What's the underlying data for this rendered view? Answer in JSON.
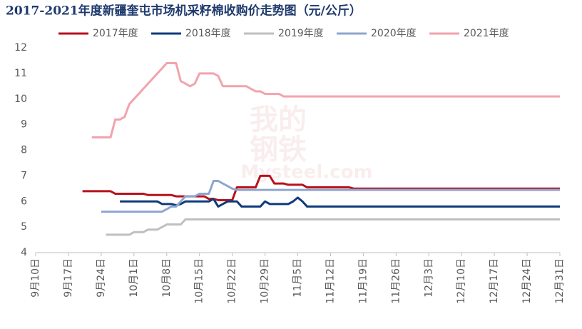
{
  "chart_data": {
    "type": "line",
    "title": "2017-2021年度新疆奎屯市场机采籽棉收购价走势图（元/公斤）",
    "watermark": [
      "我的",
      "钢铁",
      "Mysteel.com"
    ],
    "categories": [
      "9月10日",
      null,
      null,
      null,
      null,
      null,
      null,
      "9月17日",
      null,
      null,
      null,
      null,
      null,
      null,
      "9月24日",
      null,
      null,
      null,
      null,
      null,
      null,
      "10月1日",
      null,
      null,
      null,
      null,
      null,
      null,
      "10月8日",
      null,
      null,
      null,
      null,
      null,
      null,
      "10月15日",
      null,
      null,
      null,
      null,
      null,
      null,
      "10月22日",
      null,
      null,
      null,
      null,
      null,
      null,
      "10月29日",
      null,
      null,
      null,
      null,
      null,
      null,
      "11月5日",
      null,
      null,
      null,
      null,
      null,
      null,
      "11月12日",
      null,
      null,
      null,
      null,
      null,
      null,
      "11月19日",
      null,
      null,
      null,
      null,
      null,
      null,
      "11月26日",
      null,
      null,
      null,
      null,
      null,
      null,
      "12月3日",
      null,
      null,
      null,
      null,
      null,
      null,
      "12月10日",
      null,
      null,
      null,
      null,
      null,
      null,
      "12月17日",
      null,
      null,
      null,
      null,
      null,
      null,
      "12月24日",
      null,
      null,
      null,
      null,
      null,
      null,
      "12月31日"
    ],
    "ylim": [
      4,
      12
    ],
    "yticks": [
      4,
      5,
      6,
      7,
      8,
      9,
      10,
      11,
      12
    ],
    "grid": false,
    "legend": "top",
    "series": [
      {
        "name": "2017年度",
        "color": "#b8121c",
        "values": [
          null,
          null,
          null,
          null,
          null,
          null,
          null,
          null,
          null,
          null,
          6.4,
          6.4,
          6.4,
          6.4,
          6.4,
          6.4,
          6.4,
          6.3,
          6.3,
          6.3,
          6.3,
          6.3,
          6.3,
          6.3,
          6.25,
          6.25,
          6.25,
          6.25,
          6.25,
          6.25,
          6.2,
          6.2,
          6.2,
          6.2,
          6.2,
          6.2,
          6.2,
          6.1,
          6.1,
          6.05,
          6.05,
          6.05,
          6.05,
          6.55,
          6.55,
          6.55,
          6.55,
          6.55,
          7.0,
          7.0,
          7.0,
          6.7,
          6.7,
          6.7,
          6.65,
          6.65,
          6.65,
          6.65,
          6.55,
          6.55,
          6.55,
          6.55,
          6.55,
          6.55,
          6.55,
          6.55,
          6.55,
          6.55,
          6.5,
          6.5,
          6.5,
          6.5,
          6.5,
          6.5,
          6.5,
          6.5,
          6.5,
          6.5,
          6.5,
          6.5,
          6.5,
          6.5,
          6.5,
          6.5,
          6.5,
          6.5,
          6.5,
          6.5,
          6.5,
          6.5,
          6.5,
          6.5,
          6.5,
          6.5,
          6.5,
          6.5,
          6.5,
          6.5,
          6.5,
          6.5,
          6.5,
          6.5,
          6.5,
          6.5,
          6.5,
          6.5,
          6.5,
          6.5,
          6.5,
          6.5,
          6.5,
          6.5,
          6.5
        ]
      },
      {
        "name": "2018年度",
        "color": "#0f3b7d",
        "values": [
          null,
          null,
          null,
          null,
          null,
          null,
          null,
          null,
          null,
          null,
          null,
          null,
          null,
          null,
          null,
          null,
          null,
          null,
          6.0,
          6.0,
          6.0,
          6.0,
          6.0,
          6.0,
          6.0,
          6.0,
          6.0,
          5.9,
          5.9,
          5.9,
          5.85,
          5.9,
          6.0,
          6.0,
          6.0,
          6.0,
          6.0,
          6.0,
          6.1,
          5.8,
          5.9,
          6.0,
          6.0,
          6.0,
          5.8,
          5.8,
          5.8,
          5.8,
          5.8,
          6.0,
          5.9,
          5.9,
          5.9,
          5.9,
          5.9,
          6.0,
          6.15,
          6.0,
          5.8,
          5.8,
          5.8,
          5.8,
          5.8,
          5.8,
          5.8,
          5.8,
          5.8,
          5.8,
          5.8,
          5.8,
          5.8,
          5.8,
          5.8,
          5.8,
          5.8,
          5.8,
          5.8,
          5.8,
          5.8,
          5.8,
          5.8,
          5.8,
          5.8,
          5.8,
          5.8,
          5.8,
          5.8,
          5.8,
          5.8,
          5.8,
          5.8,
          5.8,
          5.8,
          5.8,
          5.8,
          5.8,
          5.8,
          5.8,
          5.8,
          5.8,
          5.8,
          5.8,
          5.8,
          5.8,
          5.8,
          5.8,
          5.8,
          5.8,
          5.8,
          5.8,
          5.8,
          5.8,
          5.8
        ]
      },
      {
        "name": "2019年度",
        "color": "#bfbfbf",
        "values": [
          null,
          null,
          null,
          null,
          null,
          null,
          null,
          null,
          null,
          null,
          null,
          null,
          null,
          null,
          null,
          4.7,
          4.7,
          4.7,
          4.7,
          4.7,
          4.7,
          4.8,
          4.8,
          4.8,
          4.9,
          4.9,
          4.9,
          5.0,
          5.1,
          5.1,
          5.1,
          5.1,
          5.3,
          5.3,
          5.3,
          5.3,
          5.3,
          5.3,
          5.3,
          5.3,
          5.3,
          5.3,
          5.3,
          5.3,
          5.3,
          5.3,
          5.3,
          5.3,
          5.3,
          5.3,
          5.3,
          5.3,
          5.3,
          5.3,
          5.3,
          5.3,
          5.3,
          5.3,
          5.3,
          5.3,
          5.3,
          5.3,
          5.3,
          5.3,
          5.3,
          5.3,
          5.3,
          5.3,
          5.3,
          5.3,
          5.3,
          5.3,
          5.3,
          5.3,
          5.3,
          5.3,
          5.3,
          5.3,
          5.3,
          5.3,
          5.3,
          5.3,
          5.3,
          5.3,
          5.3,
          5.3,
          5.3,
          5.3,
          5.3,
          5.3,
          5.3,
          5.3,
          5.3,
          5.3,
          5.3,
          5.3,
          5.3,
          5.3,
          5.3,
          5.3,
          5.3,
          5.3,
          5.3,
          5.3,
          5.3,
          5.3,
          5.3,
          5.3,
          5.3,
          5.3,
          5.3,
          5.3,
          5.3
        ]
      },
      {
        "name": "2020年度",
        "color": "#8ea6cf",
        "values": [
          null,
          null,
          null,
          null,
          null,
          null,
          null,
          null,
          null,
          null,
          null,
          null,
          null,
          null,
          5.6,
          5.6,
          5.6,
          5.6,
          5.6,
          5.6,
          5.6,
          5.6,
          5.6,
          5.6,
          5.6,
          5.6,
          5.6,
          5.6,
          5.7,
          5.8,
          5.8,
          6.0,
          6.2,
          6.2,
          6.2,
          6.3,
          6.3,
          6.3,
          6.8,
          6.8,
          6.7,
          6.6,
          6.5,
          6.45,
          6.45,
          6.45,
          6.45,
          6.45,
          6.45,
          6.45,
          6.45,
          6.45,
          6.45,
          6.45,
          6.45,
          6.45,
          6.45,
          6.45,
          6.45,
          6.45,
          6.45,
          6.45,
          6.45,
          6.45,
          6.45,
          6.45,
          6.45,
          6.45,
          6.45,
          6.45,
          6.45,
          6.45,
          6.45,
          6.45,
          6.45,
          6.45,
          6.45,
          6.45,
          6.45,
          6.45,
          6.45,
          6.45,
          6.45,
          6.45,
          6.45,
          6.45,
          6.45,
          6.45,
          6.45,
          6.45,
          6.45,
          6.45,
          6.45,
          6.45,
          6.45,
          6.45,
          6.45,
          6.45,
          6.45,
          6.45,
          6.45,
          6.45,
          6.45,
          6.45,
          6.45,
          6.45,
          6.45,
          6.45,
          6.45,
          6.45,
          6.45,
          6.45,
          6.45
        ]
      },
      {
        "name": "2021年度",
        "color": "#f2a3ad",
        "values": [
          null,
          null,
          null,
          null,
          null,
          null,
          null,
          null,
          null,
          null,
          null,
          null,
          8.5,
          8.5,
          8.5,
          8.5,
          8.5,
          9.2,
          9.2,
          9.3,
          9.8,
          10.0,
          10.2,
          10.4,
          10.6,
          10.8,
          11.0,
          11.2,
          11.4,
          11.4,
          11.4,
          10.7,
          10.6,
          10.5,
          10.6,
          11.0,
          11.0,
          11.0,
          11.0,
          10.9,
          10.5,
          10.5,
          10.5,
          10.5,
          10.5,
          10.5,
          10.4,
          10.3,
          10.3,
          10.2,
          10.2,
          10.2,
          10.2,
          10.1,
          10.1,
          10.1,
          10.1,
          10.1,
          10.1,
          10.1,
          10.1,
          10.1,
          10.1,
          10.1,
          10.1,
          10.1,
          10.1,
          10.1,
          10.1,
          10.1,
          10.1,
          10.1,
          10.1,
          10.1,
          10.1,
          10.1,
          10.1,
          10.1,
          10.1,
          10.1,
          10.1,
          10.1,
          10.1,
          10.1,
          10.1,
          10.1,
          10.1,
          10.1,
          10.1,
          10.1,
          10.1,
          10.1,
          10.1,
          10.1,
          10.1,
          10.1,
          10.1,
          10.1,
          10.1,
          10.1,
          10.1,
          10.1,
          10.1,
          10.1,
          10.1,
          10.1,
          10.1,
          10.1,
          10.1,
          10.1,
          10.1,
          10.1,
          10.1
        ]
      }
    ]
  }
}
